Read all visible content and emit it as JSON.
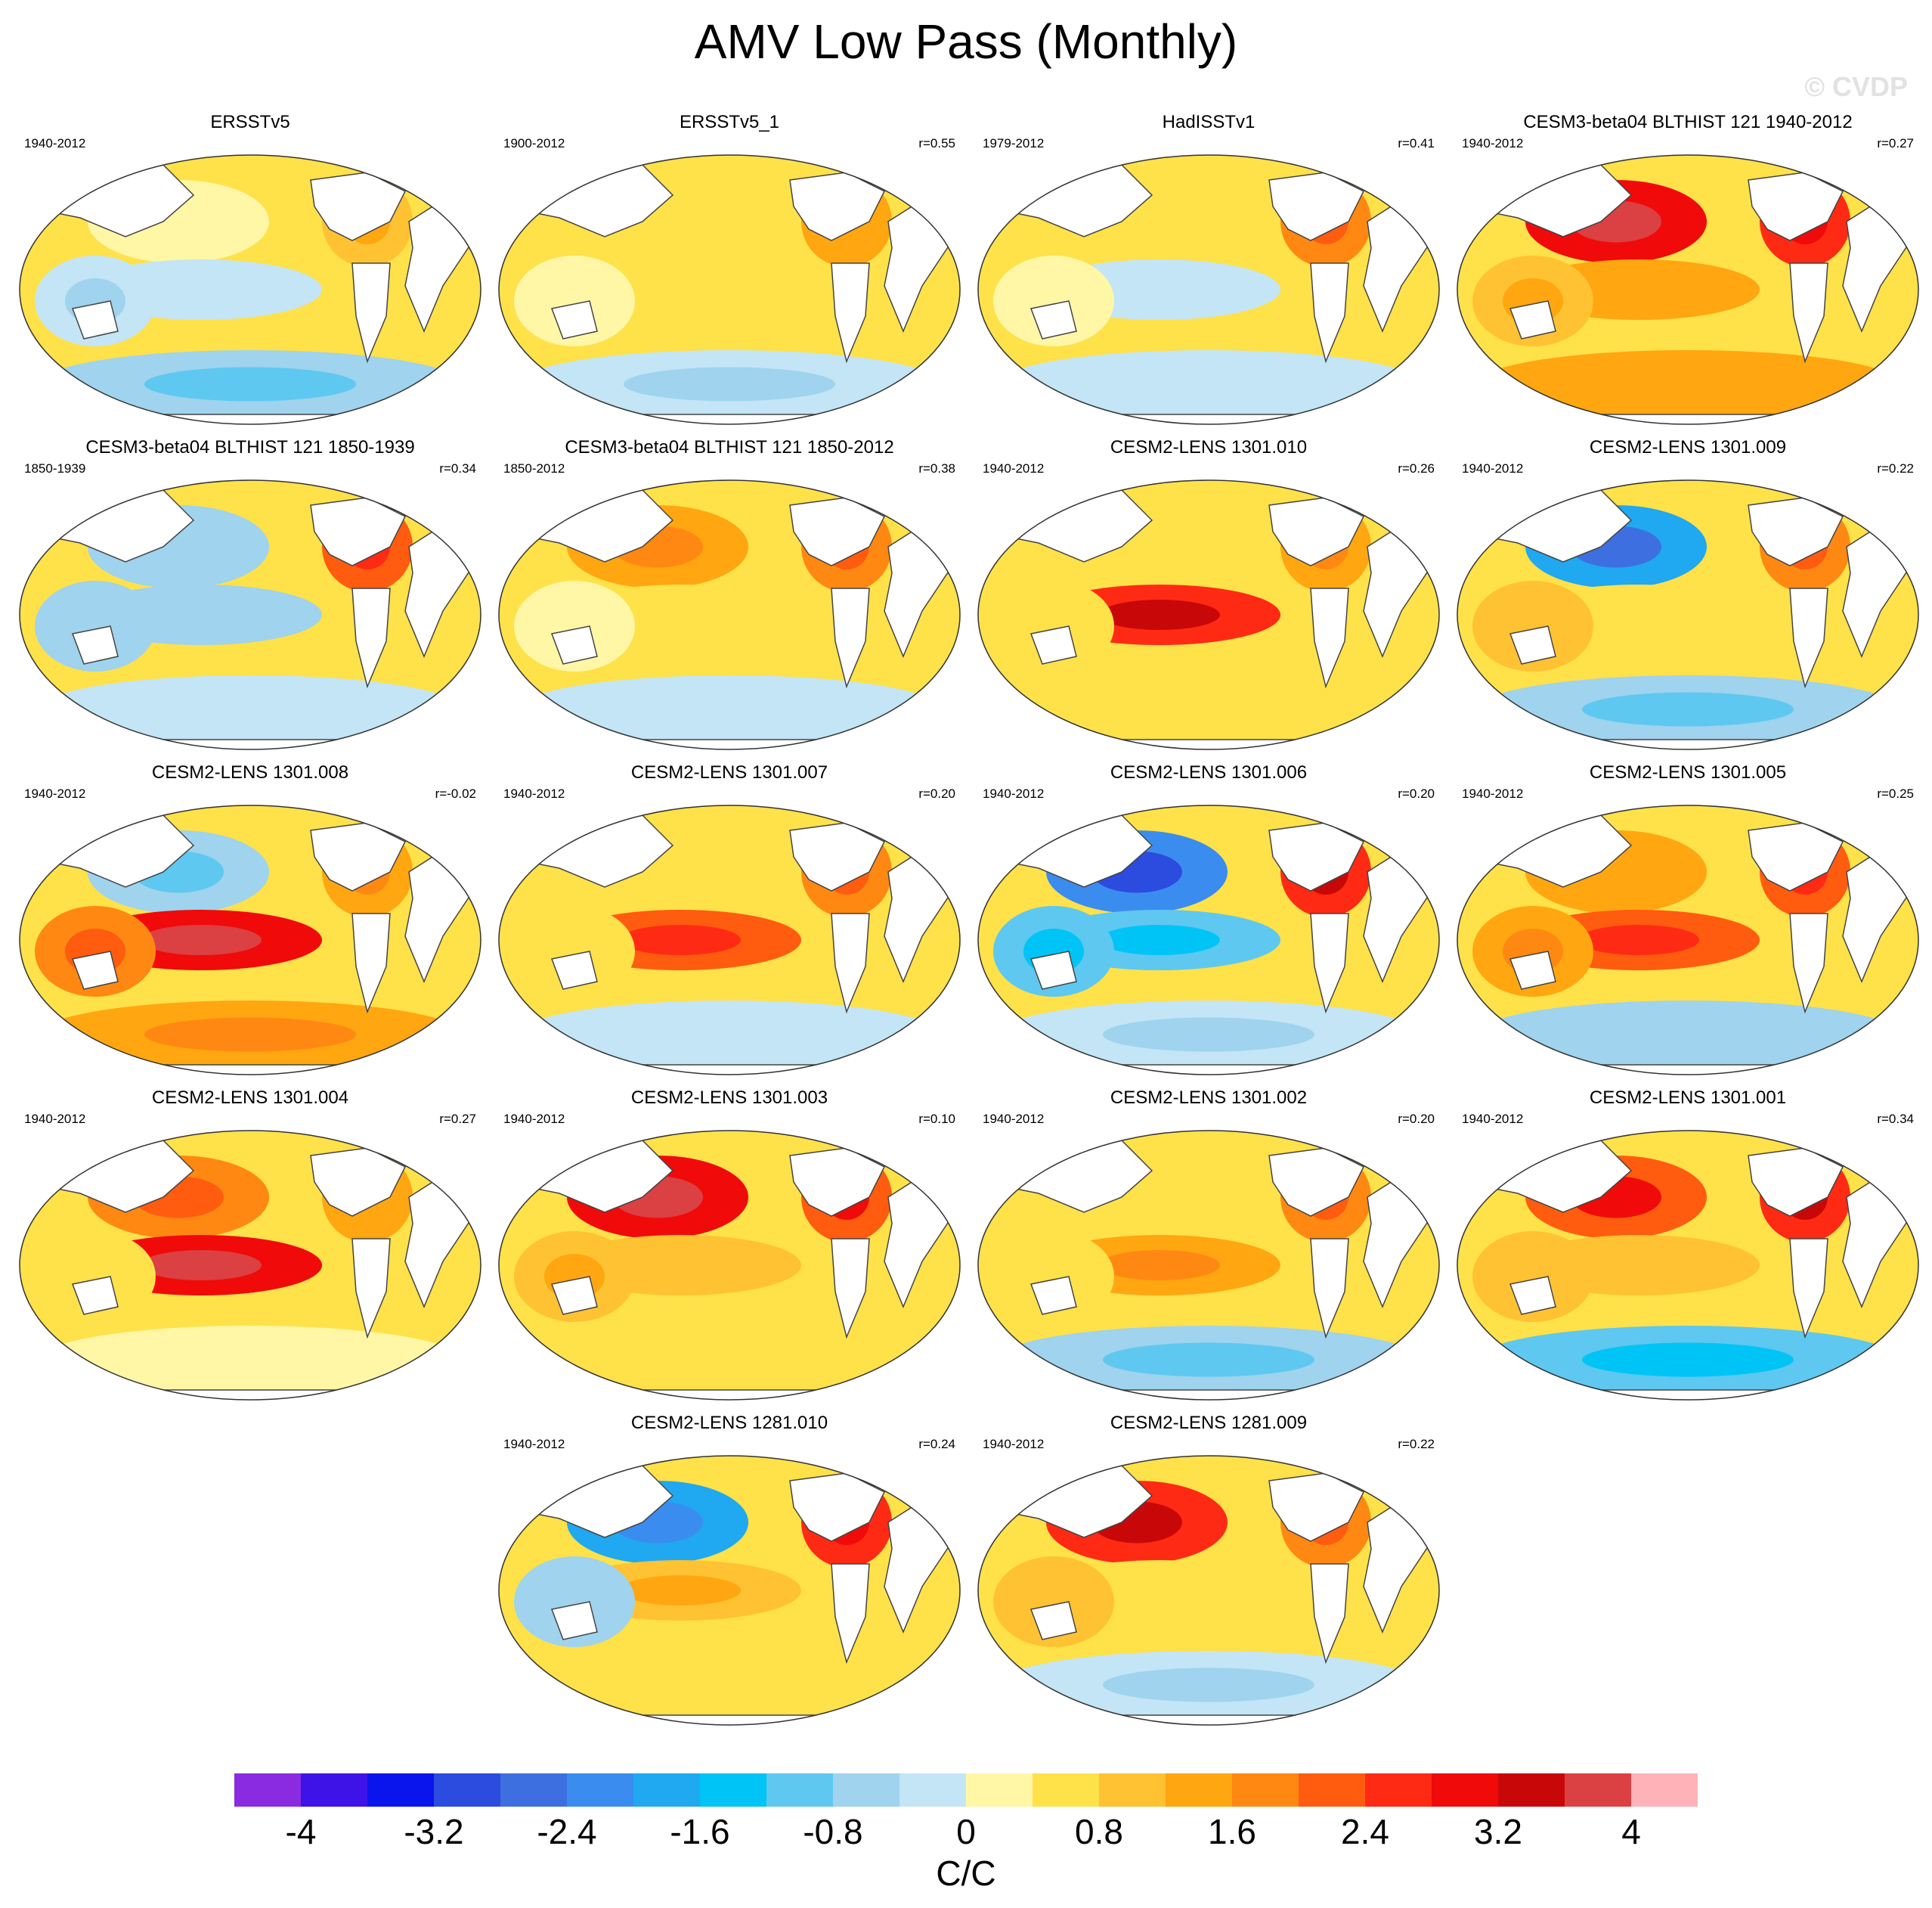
{
  "title": "AMV Low Pass (Monthly)",
  "watermark": "© CVDP",
  "chart_data": {
    "type": "heatmap",
    "description_kind": "map panels",
    "panels": [
      {
        "title": "ERSSTv5",
        "period": "1940-2012",
        "corr": "",
        "pattern": [
          0.3,
          -0.2,
          1.0,
          -0.4,
          -0.8
        ]
      },
      {
        "title": "ERSSTv5_1",
        "period": "1900-2012",
        "corr": "r=0.55",
        "pattern": [
          0.5,
          0.4,
          1.2,
          0.2,
          -0.4
        ]
      },
      {
        "title": "HadISSTv1",
        "period": "1979-2012",
        "corr": "r=0.41",
        "pattern": [
          0.6,
          -0.3,
          1.6,
          0.3,
          -0.3
        ]
      },
      {
        "title": "CESM3-beta04 BLTHIST 121 1940-2012",
        "period": "1940-2012",
        "corr": "r=0.27",
        "pattern": [
          2.8,
          1.2,
          2.4,
          1.0,
          1.2
        ]
      },
      {
        "title": "CESM3-beta04 BLTHIST 121 1850-1939",
        "period": "1850-1939",
        "corr": "r=0.34",
        "pattern": [
          -0.6,
          -0.5,
          2.0,
          -0.6,
          -0.3
        ]
      },
      {
        "title": "CESM3-beta04 BLTHIST 121 1850-2012",
        "period": "1850-2012",
        "corr": "r=0.38",
        "pattern": [
          1.4,
          0.4,
          1.6,
          0.2,
          -0.2
        ]
      },
      {
        "title": "CESM2-LENS 1301.010",
        "period": "1940-2012",
        "corr": "r=0.26",
        "pattern": [
          0.6,
          2.6,
          1.4,
          0.5,
          0.4
        ]
      },
      {
        "title": "CESM2-LENS 1301.009",
        "period": "1940-2012",
        "corr": "r=0.22",
        "pattern": [
          -2.0,
          0.6,
          1.8,
          0.8,
          -0.8
        ]
      },
      {
        "title": "CESM2-LENS 1301.008",
        "period": "1940-2012",
        "corr": "r=-0.02",
        "pattern": [
          -0.8,
          2.8,
          1.4,
          1.6,
          1.4
        ]
      },
      {
        "title": "CESM2-LENS 1301.007",
        "period": "1940-2012",
        "corr": "r=0.20",
        "pattern": [
          0.4,
          2.0,
          1.8,
          0.6,
          -0.2
        ]
      },
      {
        "title": "CESM2-LENS 1301.006",
        "period": "1940-2012",
        "corr": "r=0.20",
        "pattern": [
          -2.4,
          -1.2,
          2.6,
          -1.0,
          -0.4
        ]
      },
      {
        "title": "CESM2-LENS 1301.005",
        "period": "1940-2012",
        "corr": "r=0.25",
        "pattern": [
          1.2,
          2.0,
          2.0,
          1.4,
          -0.6
        ]
      },
      {
        "title": "CESM2-LENS 1301.004",
        "period": "1940-2012",
        "corr": "r=0.27",
        "pattern": [
          1.8,
          2.8,
          1.2,
          0.6,
          0.2
        ]
      },
      {
        "title": "CESM2-LENS 1301.003",
        "period": "1940-2012",
        "corr": "r=0.10",
        "pattern": [
          3.0,
          0.8,
          2.2,
          1.0,
          0.6
        ]
      },
      {
        "title": "CESM2-LENS 1301.002",
        "period": "1940-2012",
        "corr": "r=0.20",
        "pattern": [
          0.6,
          1.4,
          1.8,
          0.6,
          -0.8
        ]
      },
      {
        "title": "CESM2-LENS 1301.001",
        "period": "1940-2012",
        "corr": "r=0.34",
        "pattern": [
          2.2,
          0.8,
          2.6,
          0.8,
          -1.0
        ]
      },
      {
        "title": "CESM2-LENS 1281.010",
        "period": "1940-2012",
        "corr": "r=0.24",
        "pattern": [
          -1.8,
          1.0,
          2.4,
          -0.6,
          0.4
        ]
      },
      {
        "title": "CESM2-LENS 1281.009",
        "period": "1940-2012",
        "corr": "r=0.22",
        "pattern": [
          2.6,
          0.4,
          1.8,
          0.8,
          -0.4
        ]
      }
    ],
    "colorbar": {
      "levels": [
        -4.4,
        -4.0,
        -3.6,
        -3.2,
        -2.8,
        -2.4,
        -2.0,
        -1.6,
        -1.2,
        -0.8,
        -0.4,
        0,
        0.4,
        0.8,
        1.2,
        1.6,
        2.0,
        2.4,
        2.8,
        3.2,
        3.6,
        4.0,
        4.4
      ],
      "colors": [
        "#8a2be2",
        "#3d13e8",
        "#0a14ec",
        "#2b4cde",
        "#3d6fe0",
        "#3b8cef",
        "#20a8f0",
        "#00c4f6",
        "#5ec8f0",
        "#9fd3ee",
        "#c3e5f5",
        "#fff7a6",
        "#ffe14a",
        "#ffc232",
        "#ffa610",
        "#ff8812",
        "#ff5c10",
        "#ff2a14",
        "#f00a0a",
        "#c80808",
        "#db4043",
        "#ffb3b8"
      ],
      "tick_labels": [
        "-4",
        "-3.2",
        "-2.4",
        "-1.6",
        "-0.8",
        "0",
        "0.8",
        "1.6",
        "2.4",
        "3.2",
        "4"
      ],
      "tick_values": [
        -4,
        -3.2,
        -2.4,
        -1.6,
        -0.8,
        0,
        0.8,
        1.6,
        2.4,
        3.2,
        4
      ]
    },
    "units": "C/C"
  }
}
